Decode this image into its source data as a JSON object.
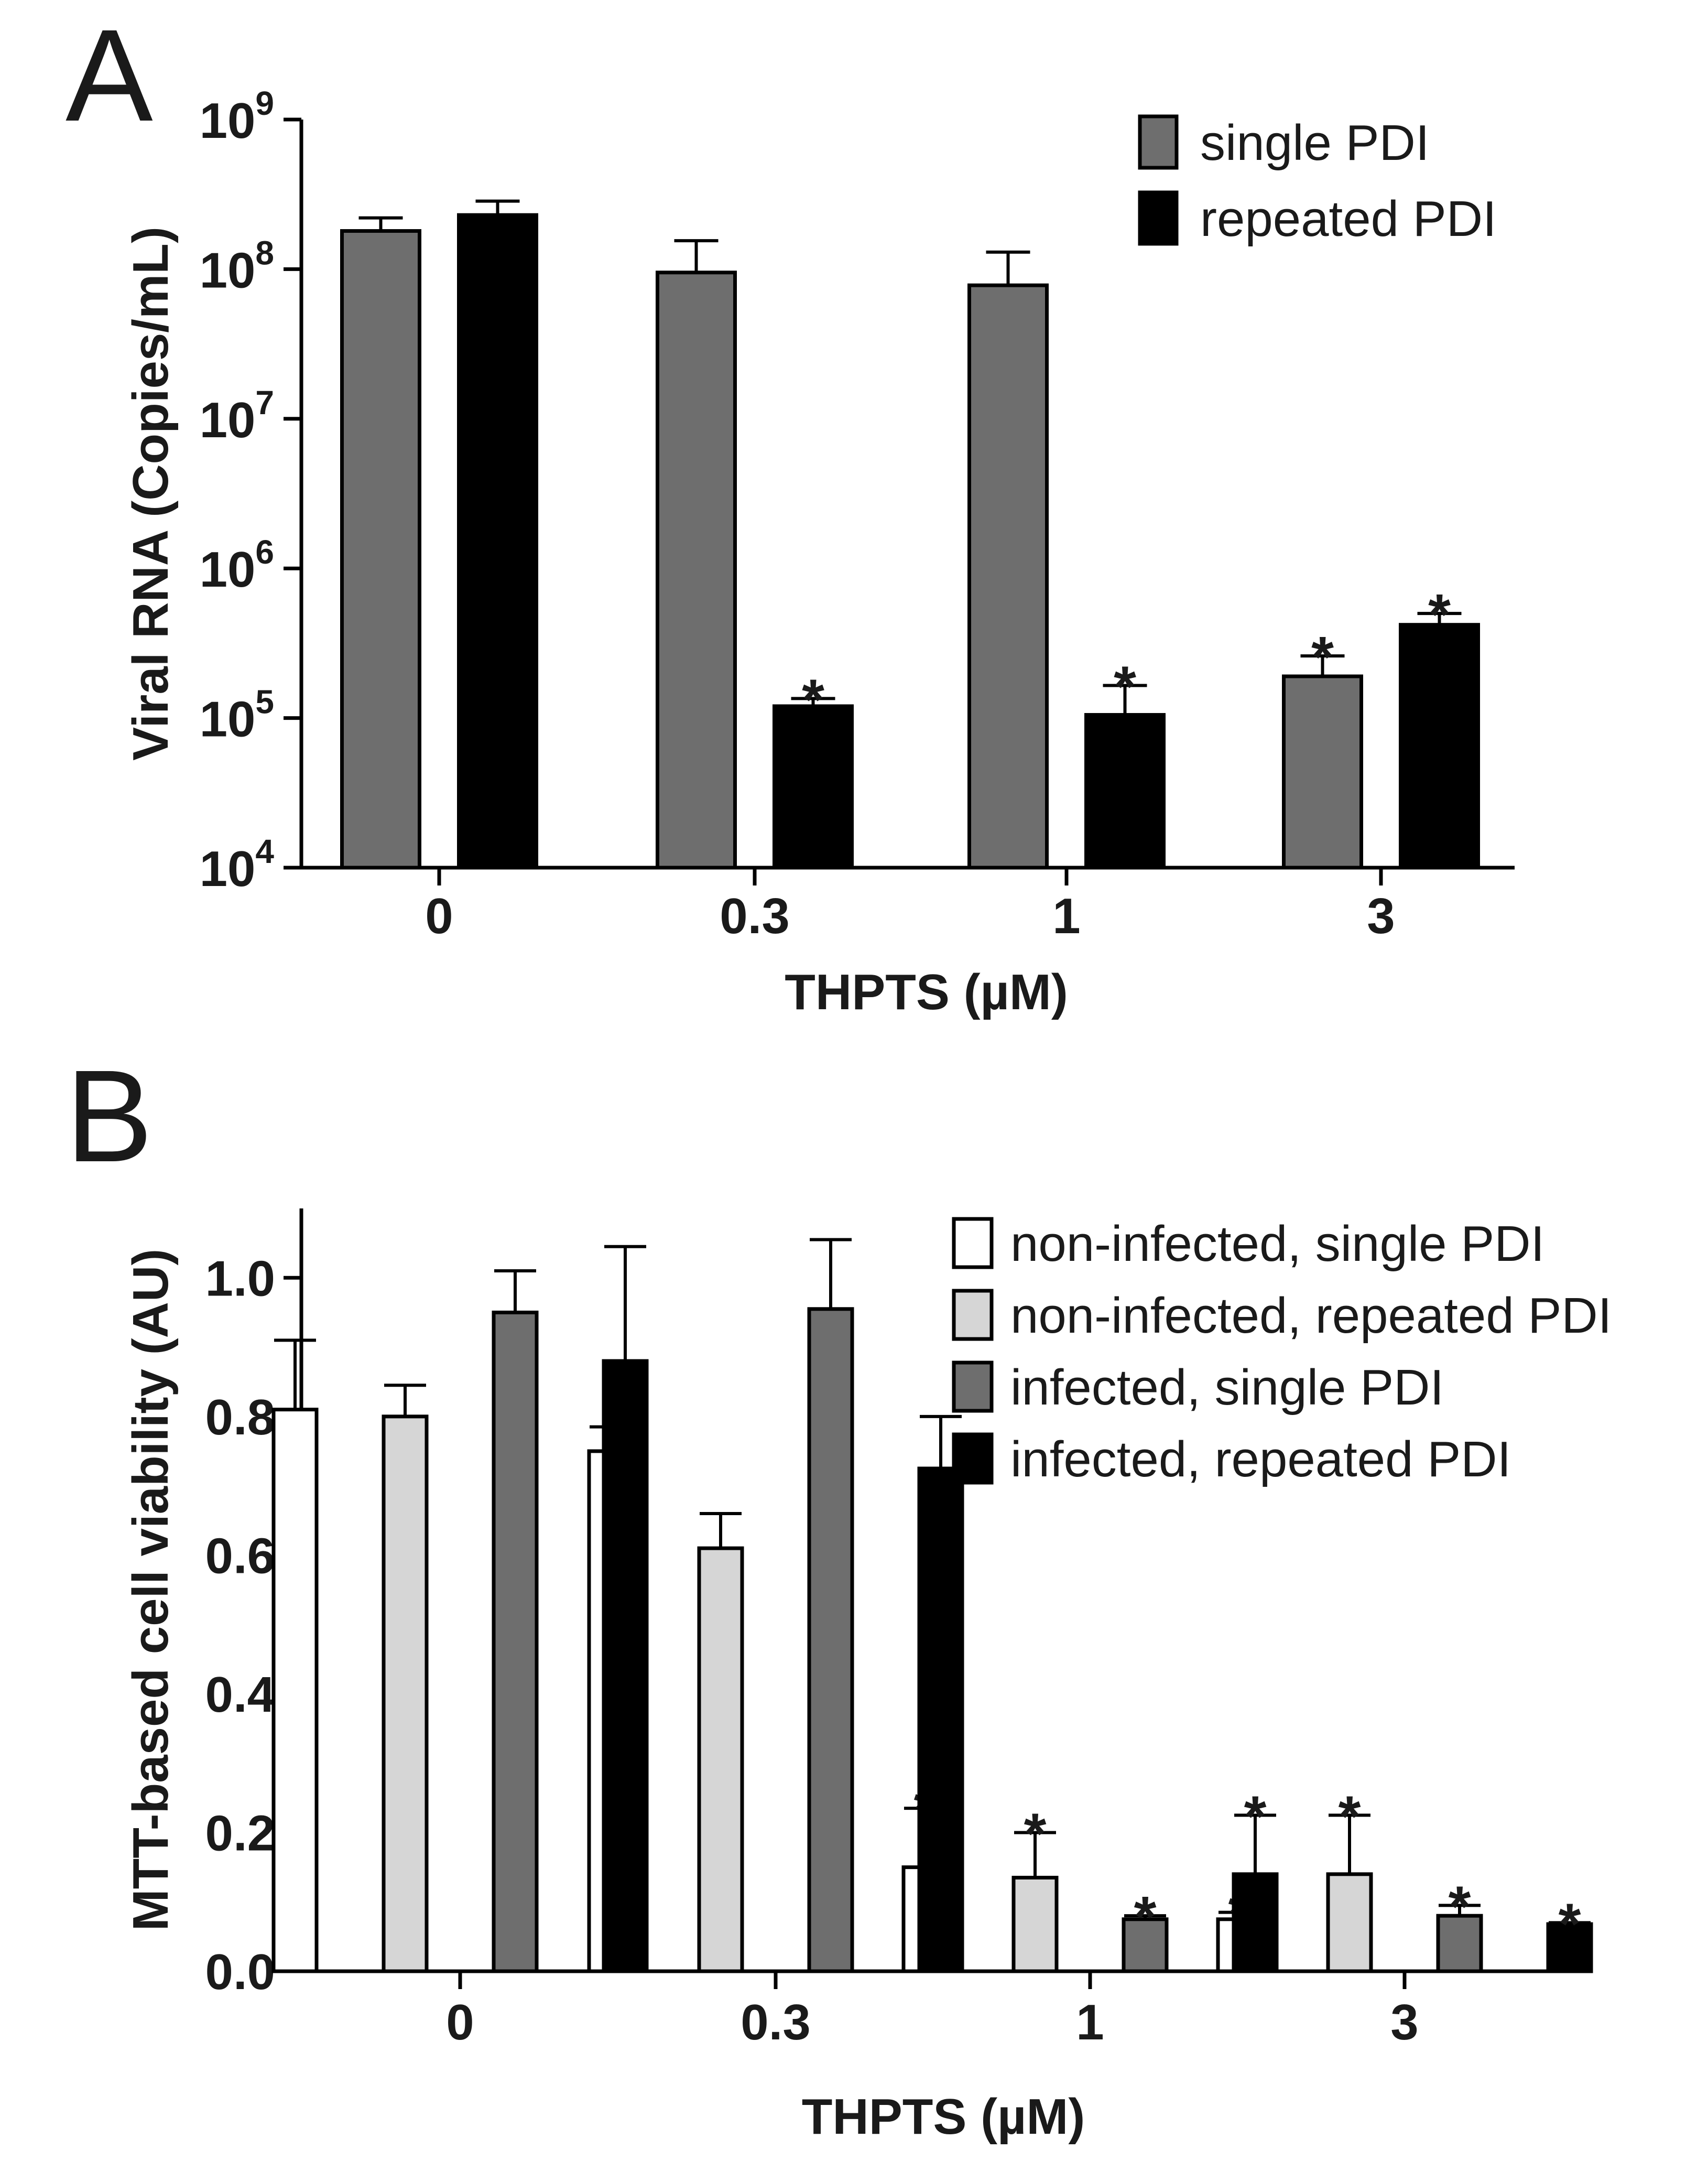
{
  "chart_data": [
    {
      "panel": "A",
      "type": "bar",
      "yscale": "log",
      "ylim": [
        10000,
        1000000000
      ],
      "yticks": [
        {
          "base": "10",
          "exp": "4",
          "value": 10000
        },
        {
          "base": "10",
          "exp": "5",
          "value": 100000
        },
        {
          "base": "10",
          "exp": "6",
          "value": 1000000
        },
        {
          "base": "10",
          "exp": "7",
          "value": 10000000
        },
        {
          "base": "10",
          "exp": "8",
          "value": 100000000
        },
        {
          "base": "10",
          "exp": "9",
          "value": 1000000000
        }
      ],
      "categories": [
        "0",
        "0.3",
        "1",
        "3"
      ],
      "xlabel": "THPTS (µM)",
      "ylabel": "Viral RNA (Copies/mL)",
      "legend_position": "top-right",
      "series": [
        {
          "name": "single PDI",
          "color": "#6e6e6e",
          "values": [
            180000000,
            95000000,
            78000000,
            190000
          ],
          "errors": [
            220000000,
            155000000,
            130000000,
            260000
          ],
          "significant": [
            false,
            false,
            false,
            true
          ]
        },
        {
          "name": "repeated PDI",
          "color": "#000000",
          "values": [
            230000000,
            120000,
            105000,
            420000
          ],
          "errors": [
            285000000,
            135000,
            165000,
            500000
          ],
          "significant": [
            false,
            true,
            true,
            true
          ]
        }
      ],
      "significance_symbol": "*"
    },
    {
      "panel": "B",
      "type": "bar",
      "yscale": "linear",
      "ylim": [
        0,
        1.1
      ],
      "yticks": [
        "0.0",
        "0.2",
        "0.4",
        "0.6",
        "0.8",
        "1.0"
      ],
      "categories": [
        "0",
        "0.3",
        "1",
        "3"
      ],
      "xlabel": "THPTS (µM)",
      "ylabel": "MTT-based cell viability (AU)",
      "legend_position": "top-right",
      "series": [
        {
          "name": "non-infected, single PDI",
          "color": "#ffffff",
          "values": [
            0.81,
            0.75,
            0.15,
            0.075
          ],
          "errors": [
            0.91,
            0.785,
            0.235,
            0.085
          ],
          "significant": [
            false,
            false,
            true,
            true
          ]
        },
        {
          "name": "non-infected, repeated PDI",
          "color": "#d6d6d6",
          "values": [
            0.8,
            0.61,
            0.135,
            0.14
          ],
          "errors": [
            0.845,
            0.66,
            0.2,
            0.225
          ],
          "significant": [
            false,
            false,
            true,
            true
          ]
        },
        {
          "name": "infected, single PDI",
          "color": "#6e6e6e",
          "values": [
            0.95,
            0.955,
            0.075,
            0.08
          ],
          "errors": [
            1.01,
            1.055,
            0.08,
            0.095
          ],
          "significant": [
            false,
            false,
            true,
            true
          ]
        },
        {
          "name": "infected, repeated PDI",
          "color": "#000000",
          "values": [
            0.88,
            0.725,
            0.14,
            0.068
          ],
          "errors": [
            1.045,
            0.8,
            0.225,
            0.07
          ],
          "significant": [
            false,
            false,
            true,
            true
          ]
        }
      ],
      "significance_symbol": "*"
    }
  ]
}
